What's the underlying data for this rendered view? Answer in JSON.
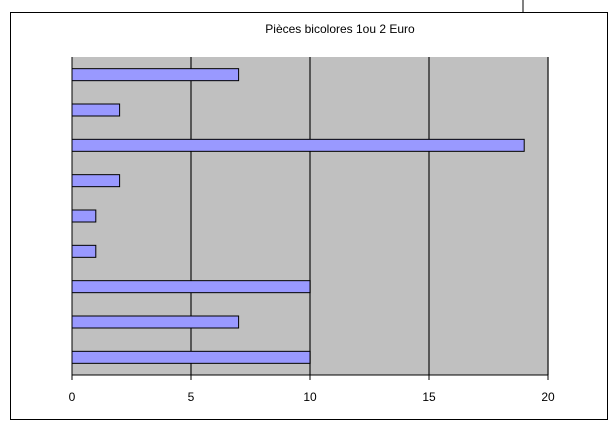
{
  "chart_data": {
    "type": "bar",
    "orientation": "horizontal",
    "title": "Pièces bicolores 1ou 2 Euro",
    "categories": [
      null,
      null,
      null,
      null,
      null,
      null,
      null,
      null,
      null
    ],
    "values": [
      7,
      2,
      19,
      2,
      1,
      1,
      10,
      7,
      10
    ],
    "color": "#9999ff",
    "xlim": [
      0,
      20
    ],
    "xticks": [
      0,
      5,
      10,
      15,
      20
    ],
    "grid": true
  }
}
